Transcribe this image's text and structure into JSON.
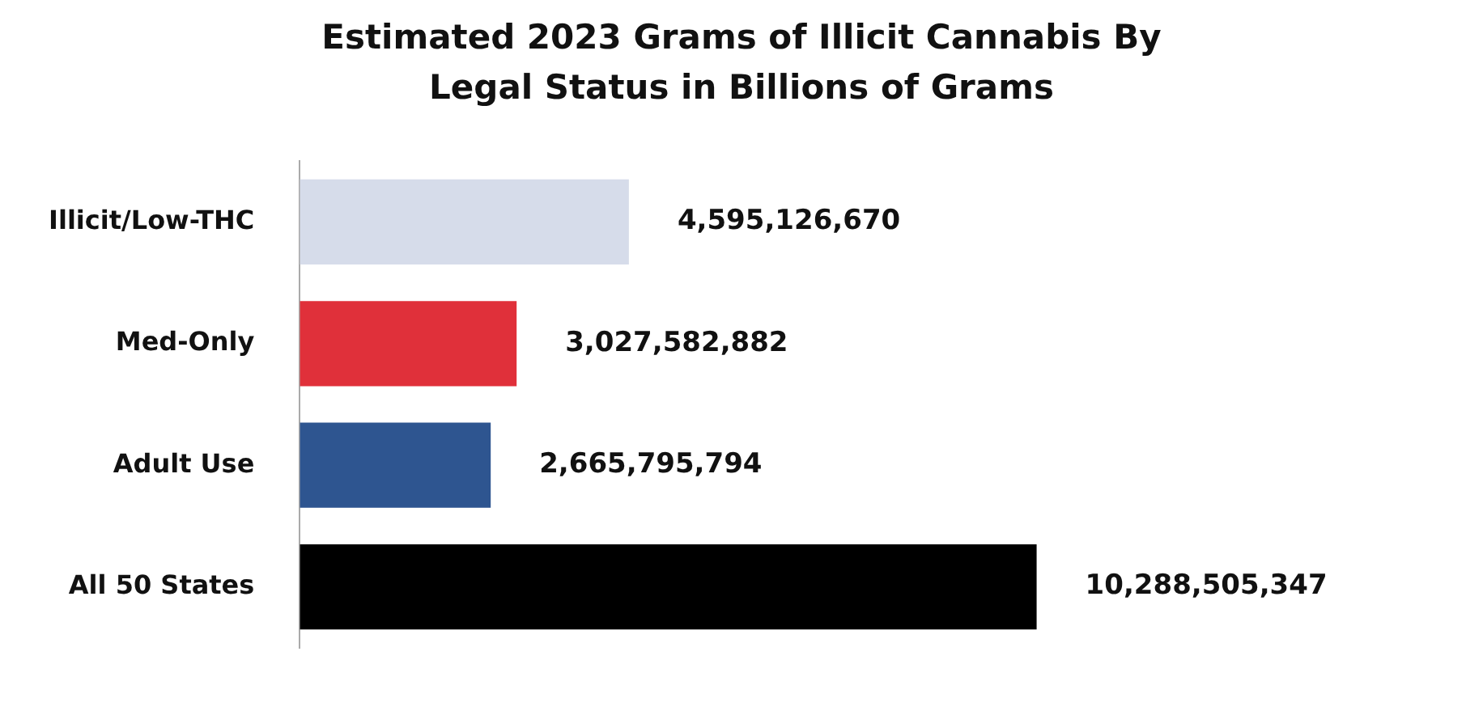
{
  "chart_data": {
    "type": "bar",
    "orientation": "horizontal",
    "title": "Estimated 2023 Grams of Illicit Cannabis By Legal Status in Billions of Grams",
    "categories": [
      "Illicit/Low-THC",
      "Med-Only",
      "Adult Use",
      "All 50 States"
    ],
    "values": [
      4595126670,
      3027582882,
      2665795794,
      10288505347
    ],
    "colors": [
      "#d6dcea",
      "#e0303a",
      "#2e5590",
      "#000000"
    ],
    "value_labels": [
      "4,595,126,670",
      "3,027,582,882",
      "2,665,795,794",
      "10,288,505,347"
    ],
    "grid": false,
    "legend": false,
    "tick_labels": "y"
  }
}
